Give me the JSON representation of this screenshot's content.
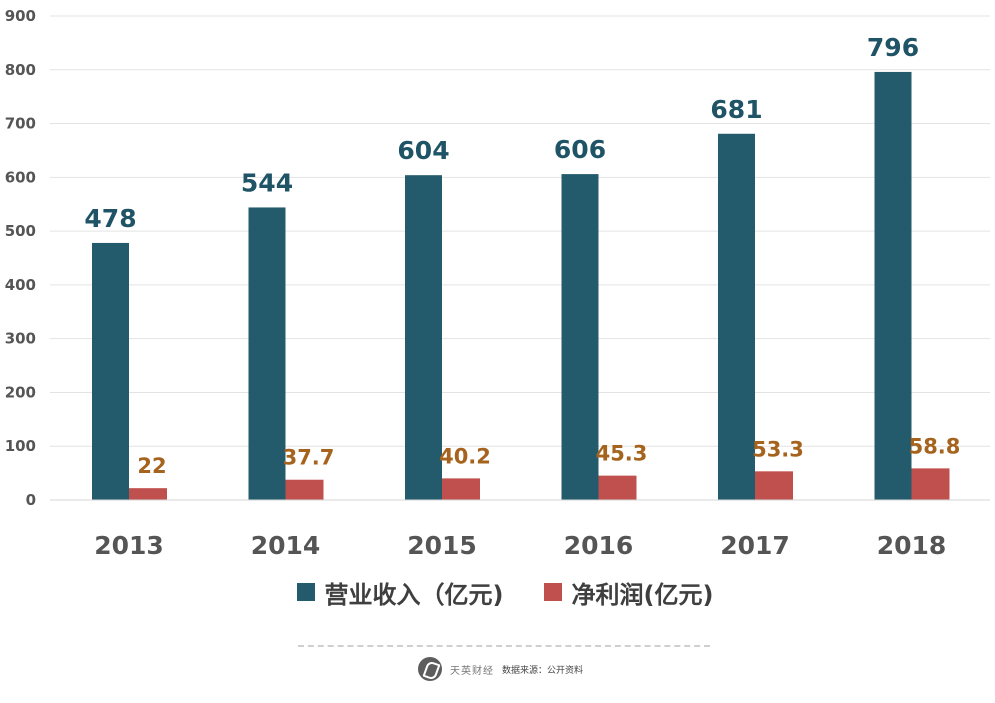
{
  "chart_data": {
    "type": "bar",
    "categories": [
      "2013",
      "2014",
      "2015",
      "2016",
      "2017",
      "2018"
    ],
    "series": [
      {
        "name": "营业收入（亿元)",
        "values": [
          478,
          544,
          604,
          606,
          681,
          796
        ],
        "labels": [
          "478",
          "544",
          "604",
          "606",
          "681",
          "796"
        ],
        "color": "#245b6c"
      },
      {
        "name": "净利润(亿元)",
        "values": [
          22,
          37.7,
          40.2,
          45.3,
          53.3,
          58.8
        ],
        "labels": [
          "22",
          "37.7",
          "40.2",
          "45.3",
          "53.3",
          "58.8"
        ],
        "color": "#c0504d"
      }
    ],
    "ylim": [
      0,
      900
    ],
    "yticks": [
      "0",
      "100",
      "200",
      "300",
      "400",
      "500",
      "600",
      "700",
      "800",
      "900"
    ],
    "grid": true,
    "legend": "bottom-center",
    "colors": {
      "revenue_label": "#1f5366",
      "profit_label": "#a5631e"
    }
  },
  "footer": {
    "brand": "天英财经",
    "source": "数据来源：公开资料"
  }
}
